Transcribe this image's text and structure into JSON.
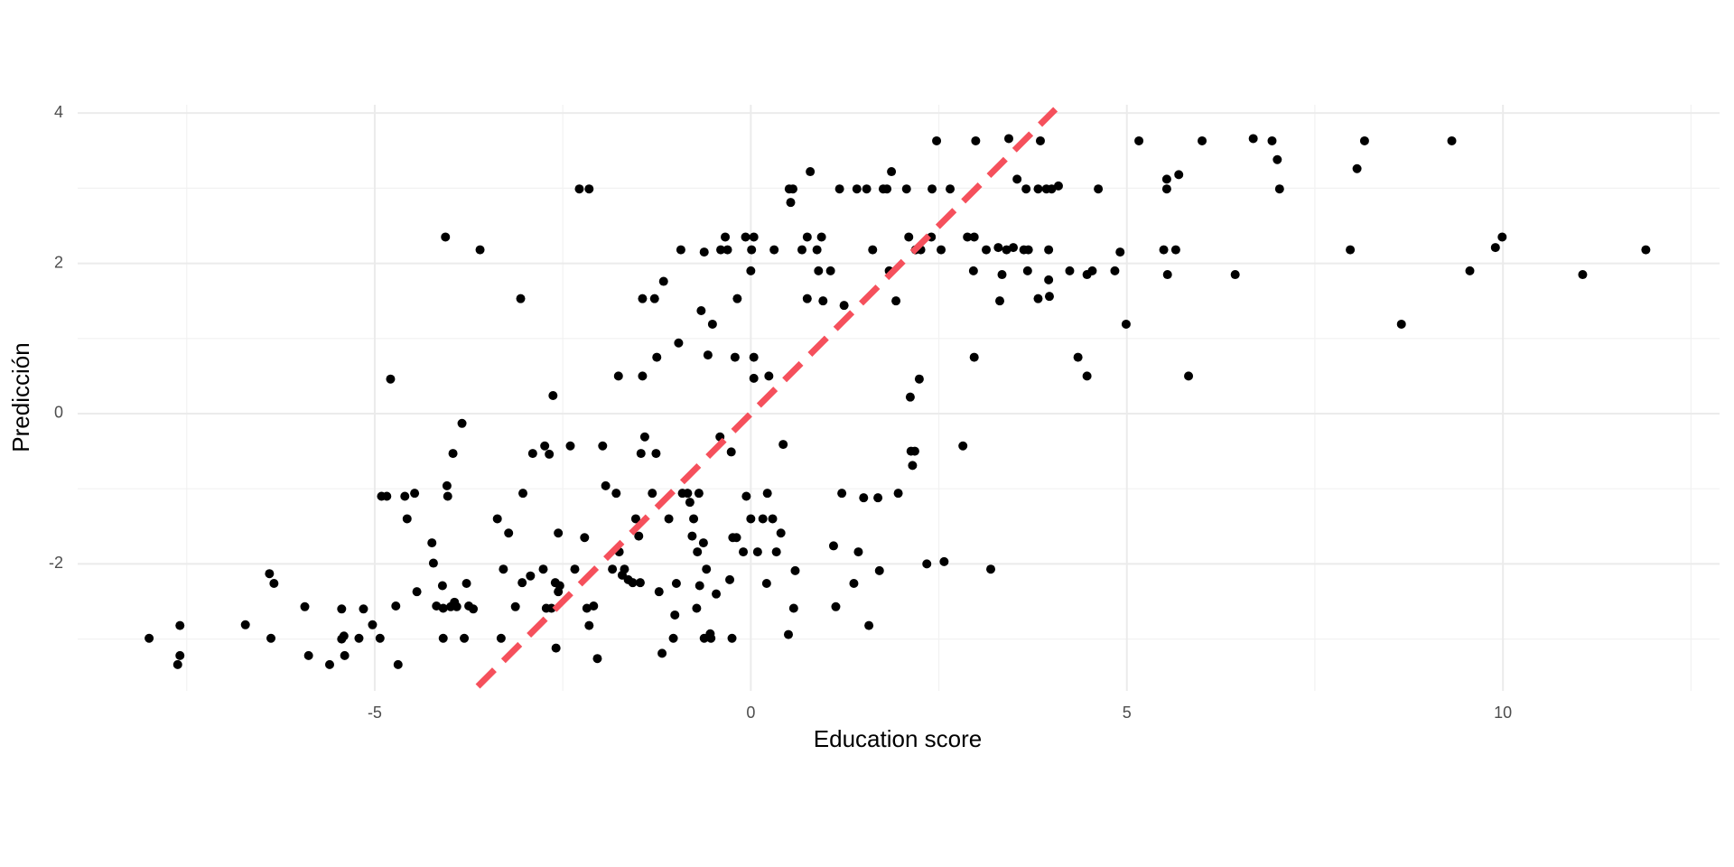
{
  "chart_data": {
    "type": "scatter",
    "x_label": "Education score",
    "y_label": "Predicción",
    "color": "#000000",
    "x": [
      -8.0,
      -7.59,
      -7.62,
      -7.59,
      -6.72,
      -6.38,
      -6.4,
      -6.34,
      -5.93,
      -5.88,
      -5.6,
      -5.44,
      -5.44,
      -5.4,
      -5.41,
      -5.21,
      -5.15,
      -5.03,
      -4.93,
      -4.91,
      -4.84,
      -4.79,
      -4.72,
      -4.69,
      -4.6,
      -4.57,
      -4.47,
      -4.44,
      -4.24,
      -4.22,
      -4.18,
      -4.1,
      -4.09,
      -4.09,
      -4.06,
      -4.04,
      -4.03,
      -3.99,
      -3.96,
      -3.94,
      -3.91,
      -3.84,
      -3.81,
      -3.78,
      -3.75,
      -3.69,
      -3.6,
      -3.37,
      -3.32,
      -3.29,
      -3.22,
      -3.13,
      -3.06,
      -3.03,
      -3.04,
      -2.93,
      -2.9,
      -2.76,
      -2.74,
      -2.72,
      -2.68,
      -2.65,
      -2.63,
      -2.6,
      -2.59,
      -2.56,
      -2.56,
      -2.54,
      -2.4,
      -2.34,
      -2.28,
      -2.21,
      -2.18,
      -2.15,
      -2.15,
      -2.09,
      -2.04,
      -1.97,
      -1.93,
      -1.84,
      -1.79,
      -1.76,
      -1.75,
      -1.71,
      -1.68,
      -1.63,
      -1.57,
      -1.53,
      -1.49,
      -1.47,
      -1.46,
      -1.44,
      -1.44,
      -1.41,
      -1.31,
      -1.28,
      -1.26,
      -1.25,
      -1.22,
      -1.18,
      -1.16,
      -1.09,
      -1.03,
      -1.01,
      -0.99,
      -0.96,
      -0.93,
      -0.91,
      -0.84,
      -0.81,
      -0.78,
      -0.76,
      -0.72,
      -0.71,
      -0.69,
      -0.68,
      -0.66,
      -0.63,
      -0.62,
      -0.62,
      -0.59,
      -0.57,
      -0.54,
      -0.53,
      -0.51,
      -0.46,
      -0.41,
      -0.4,
      -0.34,
      -0.31,
      -0.28,
      -0.26,
      -0.25,
      -0.24,
      -0.21,
      -0.19,
      -0.18,
      -0.1,
      -0.07,
      -0.06,
      0,
      0,
      0.01,
      0.04,
      0.04,
      0.04,
      0.09,
      0.16,
      0.21,
      0.22,
      0.24,
      0.29,
      0.31,
      0.34,
      0.4,
      0.43,
      0.5,
      0.51,
      0.53,
      0.56,
      0.57,
      0.59,
      0.68,
      0.75,
      0.75,
      0.79,
      0.88,
      0.9,
      0.94,
      0.96,
      1.06,
      1.1,
      1.13,
      1.18,
      1.21,
      1.24,
      1.37,
      1.41,
      1.43,
      1.5,
      1.54,
      1.57,
      1.62,
      1.69,
      1.71,
      1.76,
      1.81,
      1.84,
      1.87,
      1.93,
      1.96,
      2.07,
      2.1,
      2.12,
      2.13,
      2.15,
      2.18,
      2.19,
      2.24,
      2.26,
      2.34,
      2.4,
      2.41,
      2.47,
      2.53,
      2.57,
      2.65,
      2.82,
      2.88,
      2.96,
      2.97,
      2.97,
      2.99,
      3.13,
      3.19,
      3.29,
      3.31,
      3.34,
      3.4,
      3.43,
      3.49,
      3.54,
      3.63,
      3.66,
      3.68,
      3.69,
      3.82,
      3.82,
      3.85,
      3.93,
      3.96,
      3.96,
      3.97,
      4.0,
      4.09,
      4.24,
      4.35,
      4.47,
      4.47,
      4.54,
      4.62,
      4.84,
      4.91,
      4.99,
      5.16,
      5.49,
      5.53,
      5.53,
      5.54,
      5.65,
      5.69,
      5.82,
      6.0,
      6.44,
      6.68,
      6.93,
      7.0,
      7.03,
      7.97,
      8.06,
      8.16,
      8.65,
      9.32,
      9.56,
      9.9,
      9.99,
      11.06,
      11.9
    ],
    "values": [
      -2.99,
      -2.82,
      -3.34,
      -3.22,
      -2.81,
      -2.99,
      -2.13,
      -2.26,
      -2.57,
      -3.22,
      -3.34,
      -3.0,
      -2.6,
      -3.22,
      -2.96,
      -2.99,
      -2.6,
      -2.81,
      -2.99,
      -1.1,
      -1.1,
      0.46,
      -2.56,
      -3.34,
      -1.1,
      -1.4,
      -1.06,
      -2.37,
      -1.72,
      -1.99,
      -2.56,
      -2.29,
      -2.59,
      -2.99,
      2.35,
      -0.96,
      -1.1,
      -2.57,
      -0.53,
      -2.51,
      -2.57,
      -0.13,
      -2.99,
      -2.26,
      -2.56,
      -2.6,
      2.18,
      -1.4,
      -2.99,
      -2.07,
      -1.59,
      -2.57,
      1.53,
      -1.06,
      -2.25,
      -2.16,
      -0.53,
      -2.07,
      -0.43,
      -2.59,
      -0.54,
      -2.59,
      0.24,
      -2.25,
      -3.12,
      -1.59,
      -2.37,
      -2.29,
      -0.43,
      -2.07,
      2.99,
      -1.65,
      -2.59,
      2.99,
      -2.82,
      -2.56,
      -3.26,
      -0.43,
      -0.96,
      -2.07,
      -1.06,
      0.5,
      -1.84,
      -2.15,
      -2.07,
      -2.21,
      -2.25,
      -1.4,
      -1.63,
      -2.25,
      -0.53,
      1.53,
      0.5,
      -0.31,
      -1.06,
      1.53,
      -0.53,
      0.75,
      -2.37,
      -3.19,
      1.76,
      -1.4,
      -2.99,
      -2.68,
      -2.26,
      0.94,
      2.18,
      -1.06,
      -1.06,
      -1.18,
      -1.63,
      -1.4,
      -2.59,
      -1.84,
      -1.06,
      -2.29,
      1.37,
      -1.72,
      -2.99,
      2.15,
      -2.07,
      0.78,
      -2.93,
      -2.99,
      1.19,
      -2.4,
      -0.31,
      2.18,
      2.35,
      2.18,
      -2.21,
      -0.51,
      -2.99,
      -1.65,
      0.75,
      -1.65,
      1.53,
      -1.84,
      2.35,
      -1.1,
      1.9,
      -1.4,
      2.18,
      2.35,
      0.47,
      0.75,
      -1.84,
      -1.4,
      -2.26,
      -1.06,
      0.5,
      -1.4,
      2.18,
      -1.84,
      -1.59,
      -0.41,
      -2.94,
      2.99,
      2.81,
      2.99,
      -2.59,
      -2.09,
      2.18,
      1.53,
      2.35,
      3.22,
      2.18,
      1.9,
      2.35,
      1.5,
      1.9,
      -1.76,
      -2.57,
      2.99,
      -1.06,
      1.44,
      -2.26,
      2.99,
      -1.84,
      -1.12,
      2.99,
      -2.82,
      2.18,
      -1.12,
      -2.09,
      2.99,
      2.99,
      1.9,
      3.22,
      1.5,
      -1.06,
      2.99,
      2.35,
      0.22,
      -0.5,
      -0.69,
      -0.5,
      2.18,
      0.46,
      2.18,
      -2.0,
      2.35,
      2.99,
      3.63,
      2.18,
      -1.97,
      2.99,
      -0.43,
      2.35,
      1.9,
      0.75,
      2.35,
      3.63,
      2.18,
      -2.07,
      2.21,
      1.5,
      1.85,
      2.18,
      3.66,
      2.21,
      3.12,
      2.18,
      2.99,
      1.9,
      2.18,
      2.99,
      1.53,
      3.63,
      2.99,
      2.18,
      1.78,
      1.56,
      2.99,
      3.03,
      1.9,
      0.75,
      0.5,
      1.85,
      1.9,
      2.99,
      1.9,
      2.15,
      1.19,
      3.63,
      2.18,
      3.12,
      2.99,
      1.85,
      2.18,
      3.18,
      0.5,
      3.63,
      1.85,
      3.66,
      3.63,
      3.38,
      2.99,
      2.18,
      3.26,
      3.63,
      1.19,
      3.63,
      1.9,
      2.21,
      2.35,
      1.85,
      2.18
    ],
    "reference_line": {
      "x": [
        -3.63,
        4.05
      ],
      "values": [
        -3.63,
        4.05
      ],
      "color": "#f5505c",
      "dashed": true
    },
    "xlim": [
      -8.95,
      12.88
    ],
    "ylim": [
      -3.69,
      4.11
    ],
    "xticks": [
      -5,
      0,
      5,
      10
    ],
    "yticks": [
      -2,
      0,
      2,
      4
    ],
    "x_minor_grid": [
      -7.5,
      -2.5,
      2.5,
      7.5,
      12.5
    ],
    "y_minor_grid": [
      -3,
      -1,
      1,
      3
    ],
    "grid": true
  }
}
